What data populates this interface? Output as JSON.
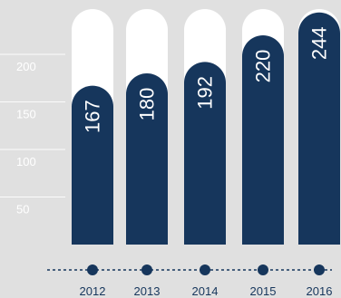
{
  "chart_data": {
    "type": "bar",
    "categories": [
      "2012",
      "2013",
      "2014",
      "2015",
      "2016"
    ],
    "values": [
      167,
      180,
      192,
      220,
      244
    ],
    "y_ticks": [
      "50",
      "100",
      "150",
      "200"
    ],
    "ylim": [
      0,
      250
    ],
    "grid": true,
    "title": "",
    "xlabel": "",
    "ylabel": ""
  },
  "colors": {
    "background": "#e0e0e0",
    "bar": "#16365c",
    "track": "#ffffff",
    "grid": "#ffffff",
    "timeline": "#16365c"
  }
}
